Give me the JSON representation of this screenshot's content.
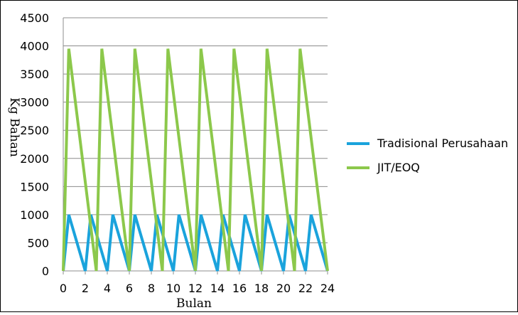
{
  "chart_data": {
    "type": "line",
    "xlabel": "Bulan",
    "ylabel": "Kg Bahan",
    "xlim": [
      0,
      24
    ],
    "ylim": [
      0,
      4500
    ],
    "xticks": [
      0,
      2,
      4,
      6,
      8,
      10,
      12,
      14,
      16,
      18,
      20,
      22,
      24
    ],
    "yticks": [
      0,
      500,
      1000,
      1500,
      2000,
      2500,
      3000,
      3500,
      4000,
      4500
    ],
    "grid": "horizontal",
    "legend_position": "right",
    "series": [
      {
        "name": "Tradisional Perusahaan",
        "color": "#1aa3dc",
        "points": [
          [
            0,
            0
          ],
          [
            0.5,
            1000
          ],
          [
            2,
            0
          ],
          [
            2.5,
            1000
          ],
          [
            4,
            0
          ],
          [
            4.5,
            1000
          ],
          [
            6,
            0
          ],
          [
            6.5,
            1000
          ],
          [
            8,
            0
          ],
          [
            8.5,
            1000
          ],
          [
            10,
            0
          ],
          [
            10.5,
            1000
          ],
          [
            12,
            0
          ],
          [
            12.5,
            1000
          ],
          [
            14,
            0
          ],
          [
            14.5,
            1000
          ],
          [
            16,
            0
          ],
          [
            16.5,
            1000
          ],
          [
            18,
            0
          ],
          [
            18.5,
            1000
          ],
          [
            20,
            0
          ],
          [
            20.5,
            1000
          ],
          [
            22,
            0
          ],
          [
            22.5,
            1000
          ],
          [
            24,
            0
          ]
        ]
      },
      {
        "name": "JIT/EOQ",
        "color": "#8cc84b",
        "points": [
          [
            0,
            0
          ],
          [
            0.5,
            3950
          ],
          [
            3,
            0
          ],
          [
            3.5,
            3950
          ],
          [
            6,
            0
          ],
          [
            6.5,
            3950
          ],
          [
            9,
            0
          ],
          [
            9.5,
            3950
          ],
          [
            12,
            0
          ],
          [
            12.5,
            3950
          ],
          [
            15,
            0
          ],
          [
            15.5,
            3950
          ],
          [
            18,
            0
          ],
          [
            18.5,
            3950
          ],
          [
            21,
            0
          ],
          [
            21.5,
            3950
          ],
          [
            24,
            0
          ]
        ]
      }
    ]
  }
}
